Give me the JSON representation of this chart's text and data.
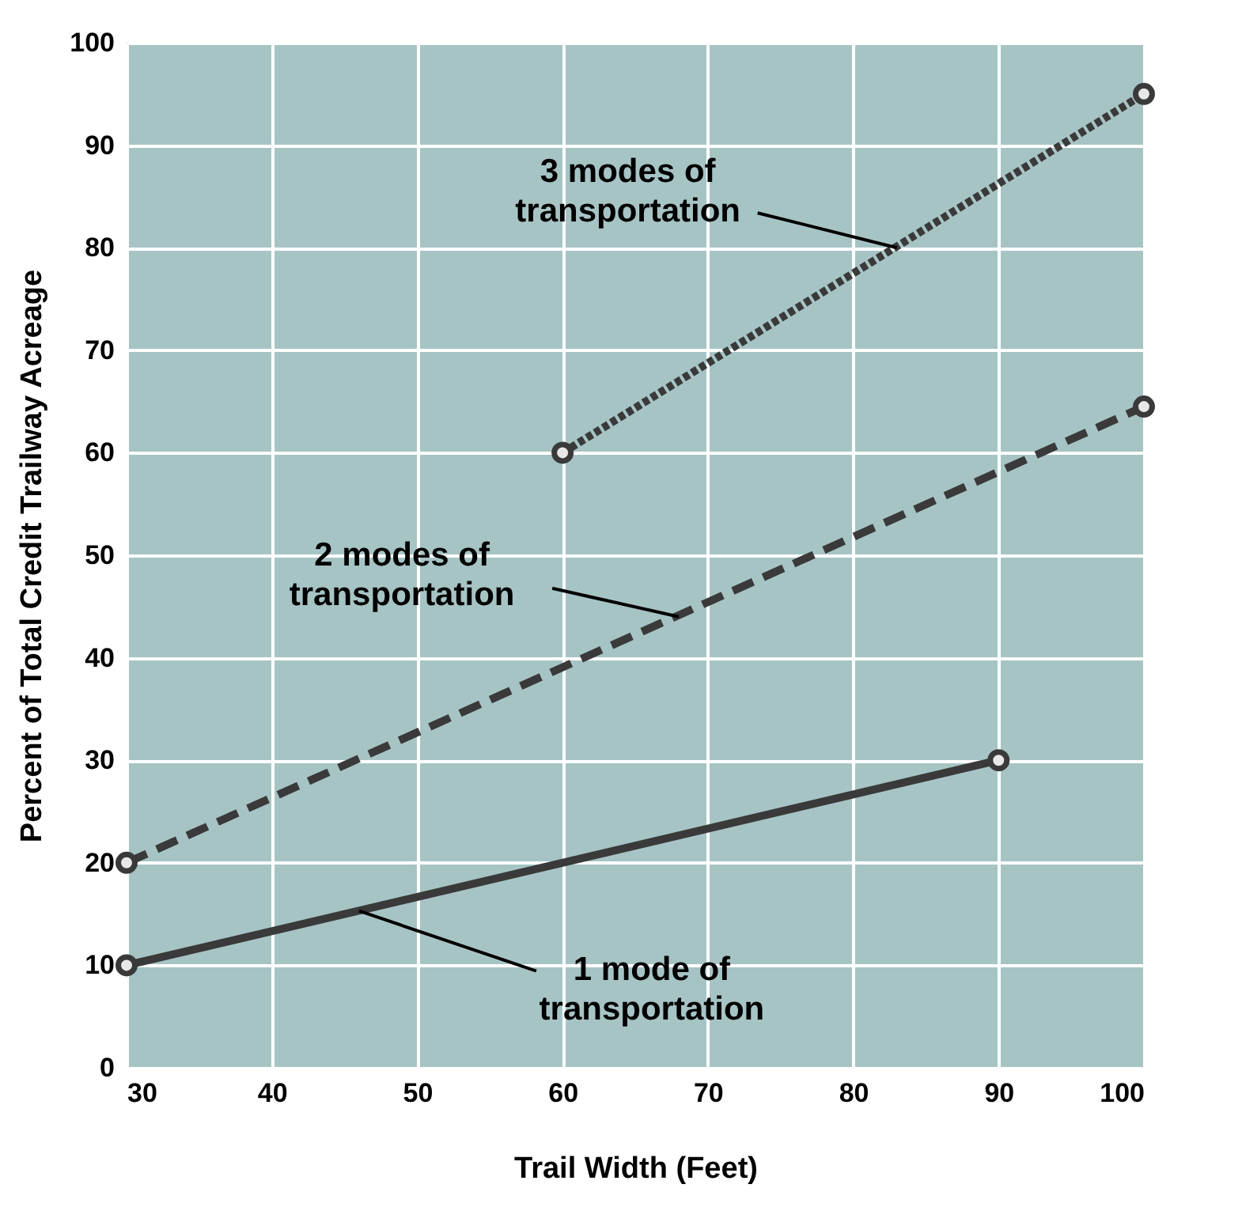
{
  "chart_data": {
    "type": "line",
    "xlabel": "Trail Width (Feet)",
    "ylabel": "Percent of Total Credit Trailway Acreage",
    "series": [
      {
        "x": [
          30,
          90
        ],
        "values": [
          10,
          30
        ],
        "color": "#3a3a3a",
        "line_style": "solid"
      },
      {
        "x": [
          30,
          100
        ],
        "values": [
          20,
          64.5
        ],
        "color": "#3a3a3a",
        "line_style": "dashed"
      },
      {
        "x": [
          60,
          100
        ],
        "values": [
          60,
          95
        ],
        "color": "#3a3a3a",
        "line_style": "dotted"
      }
    ],
    "annotations": [
      {
        "text": "1 mode of\ntransportation",
        "x": 46,
        "y": 15.3
      },
      {
        "text": "2 modes of\ntransportation",
        "x": 68,
        "y": 44
      },
      {
        "text": "3 modes of\ntransportation",
        "x": 83,
        "y": 80
      }
    ],
    "xlim": [
      30,
      100
    ],
    "xticks": [
      30,
      40,
      50,
      60,
      70,
      80,
      90,
      100
    ],
    "ylim": [
      0,
      100
    ],
    "yticks": [
      0,
      10,
      20,
      30,
      40,
      50,
      60,
      70,
      80,
      90,
      100
    ],
    "grid": true,
    "marker": "circle"
  }
}
